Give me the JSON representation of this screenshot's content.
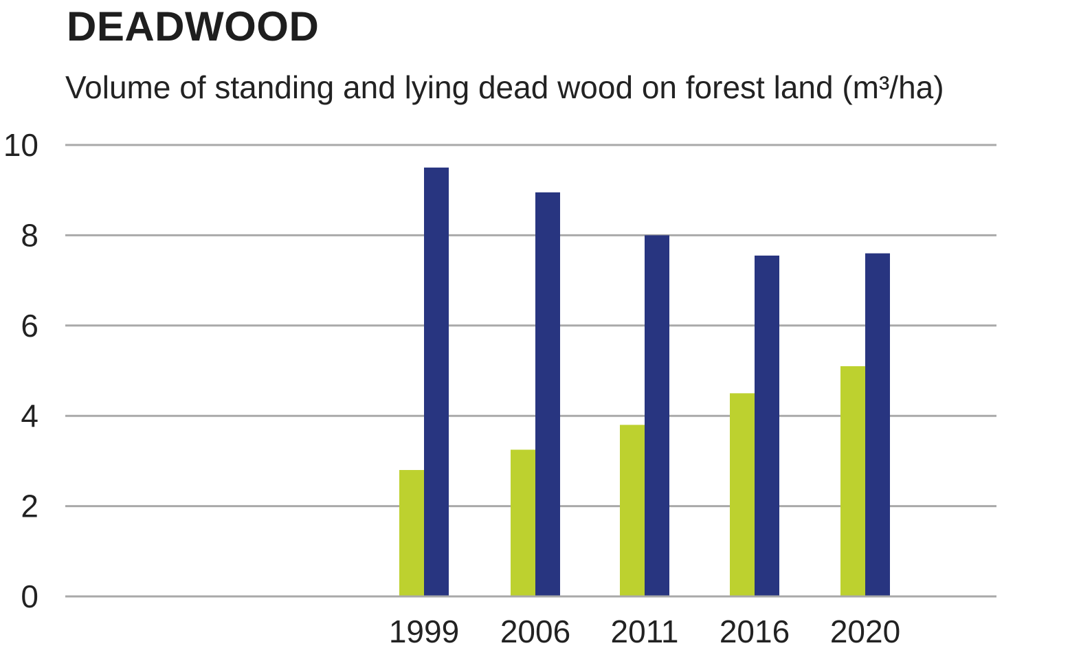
{
  "title": "DEADWOOD",
  "subtitle": "Volume of standing and lying dead wood on forest land (m³/ha)",
  "colors": {
    "series_1": "#bdd12f",
    "series_2": "#283580",
    "grid": "#a9a9a9",
    "text": "#222222"
  },
  "chart_data": {
    "type": "bar",
    "title": "DEADWOOD",
    "subtitle": "Volume of standing and lying dead wood on forest land (m³/ha)",
    "categories": [
      "1999",
      "2006",
      "2011",
      "2016",
      "2020"
    ],
    "series": [
      {
        "values": [
          2.8,
          3.25,
          3.8,
          4.5,
          5.1
        ]
      },
      {
        "values": [
          9.5,
          8.95,
          8.0,
          7.55,
          7.6
        ]
      }
    ],
    "ylim": [
      0,
      10
    ],
    "yticks": [
      0,
      2,
      4,
      6,
      8,
      10
    ],
    "grid": true,
    "legend": "none"
  }
}
